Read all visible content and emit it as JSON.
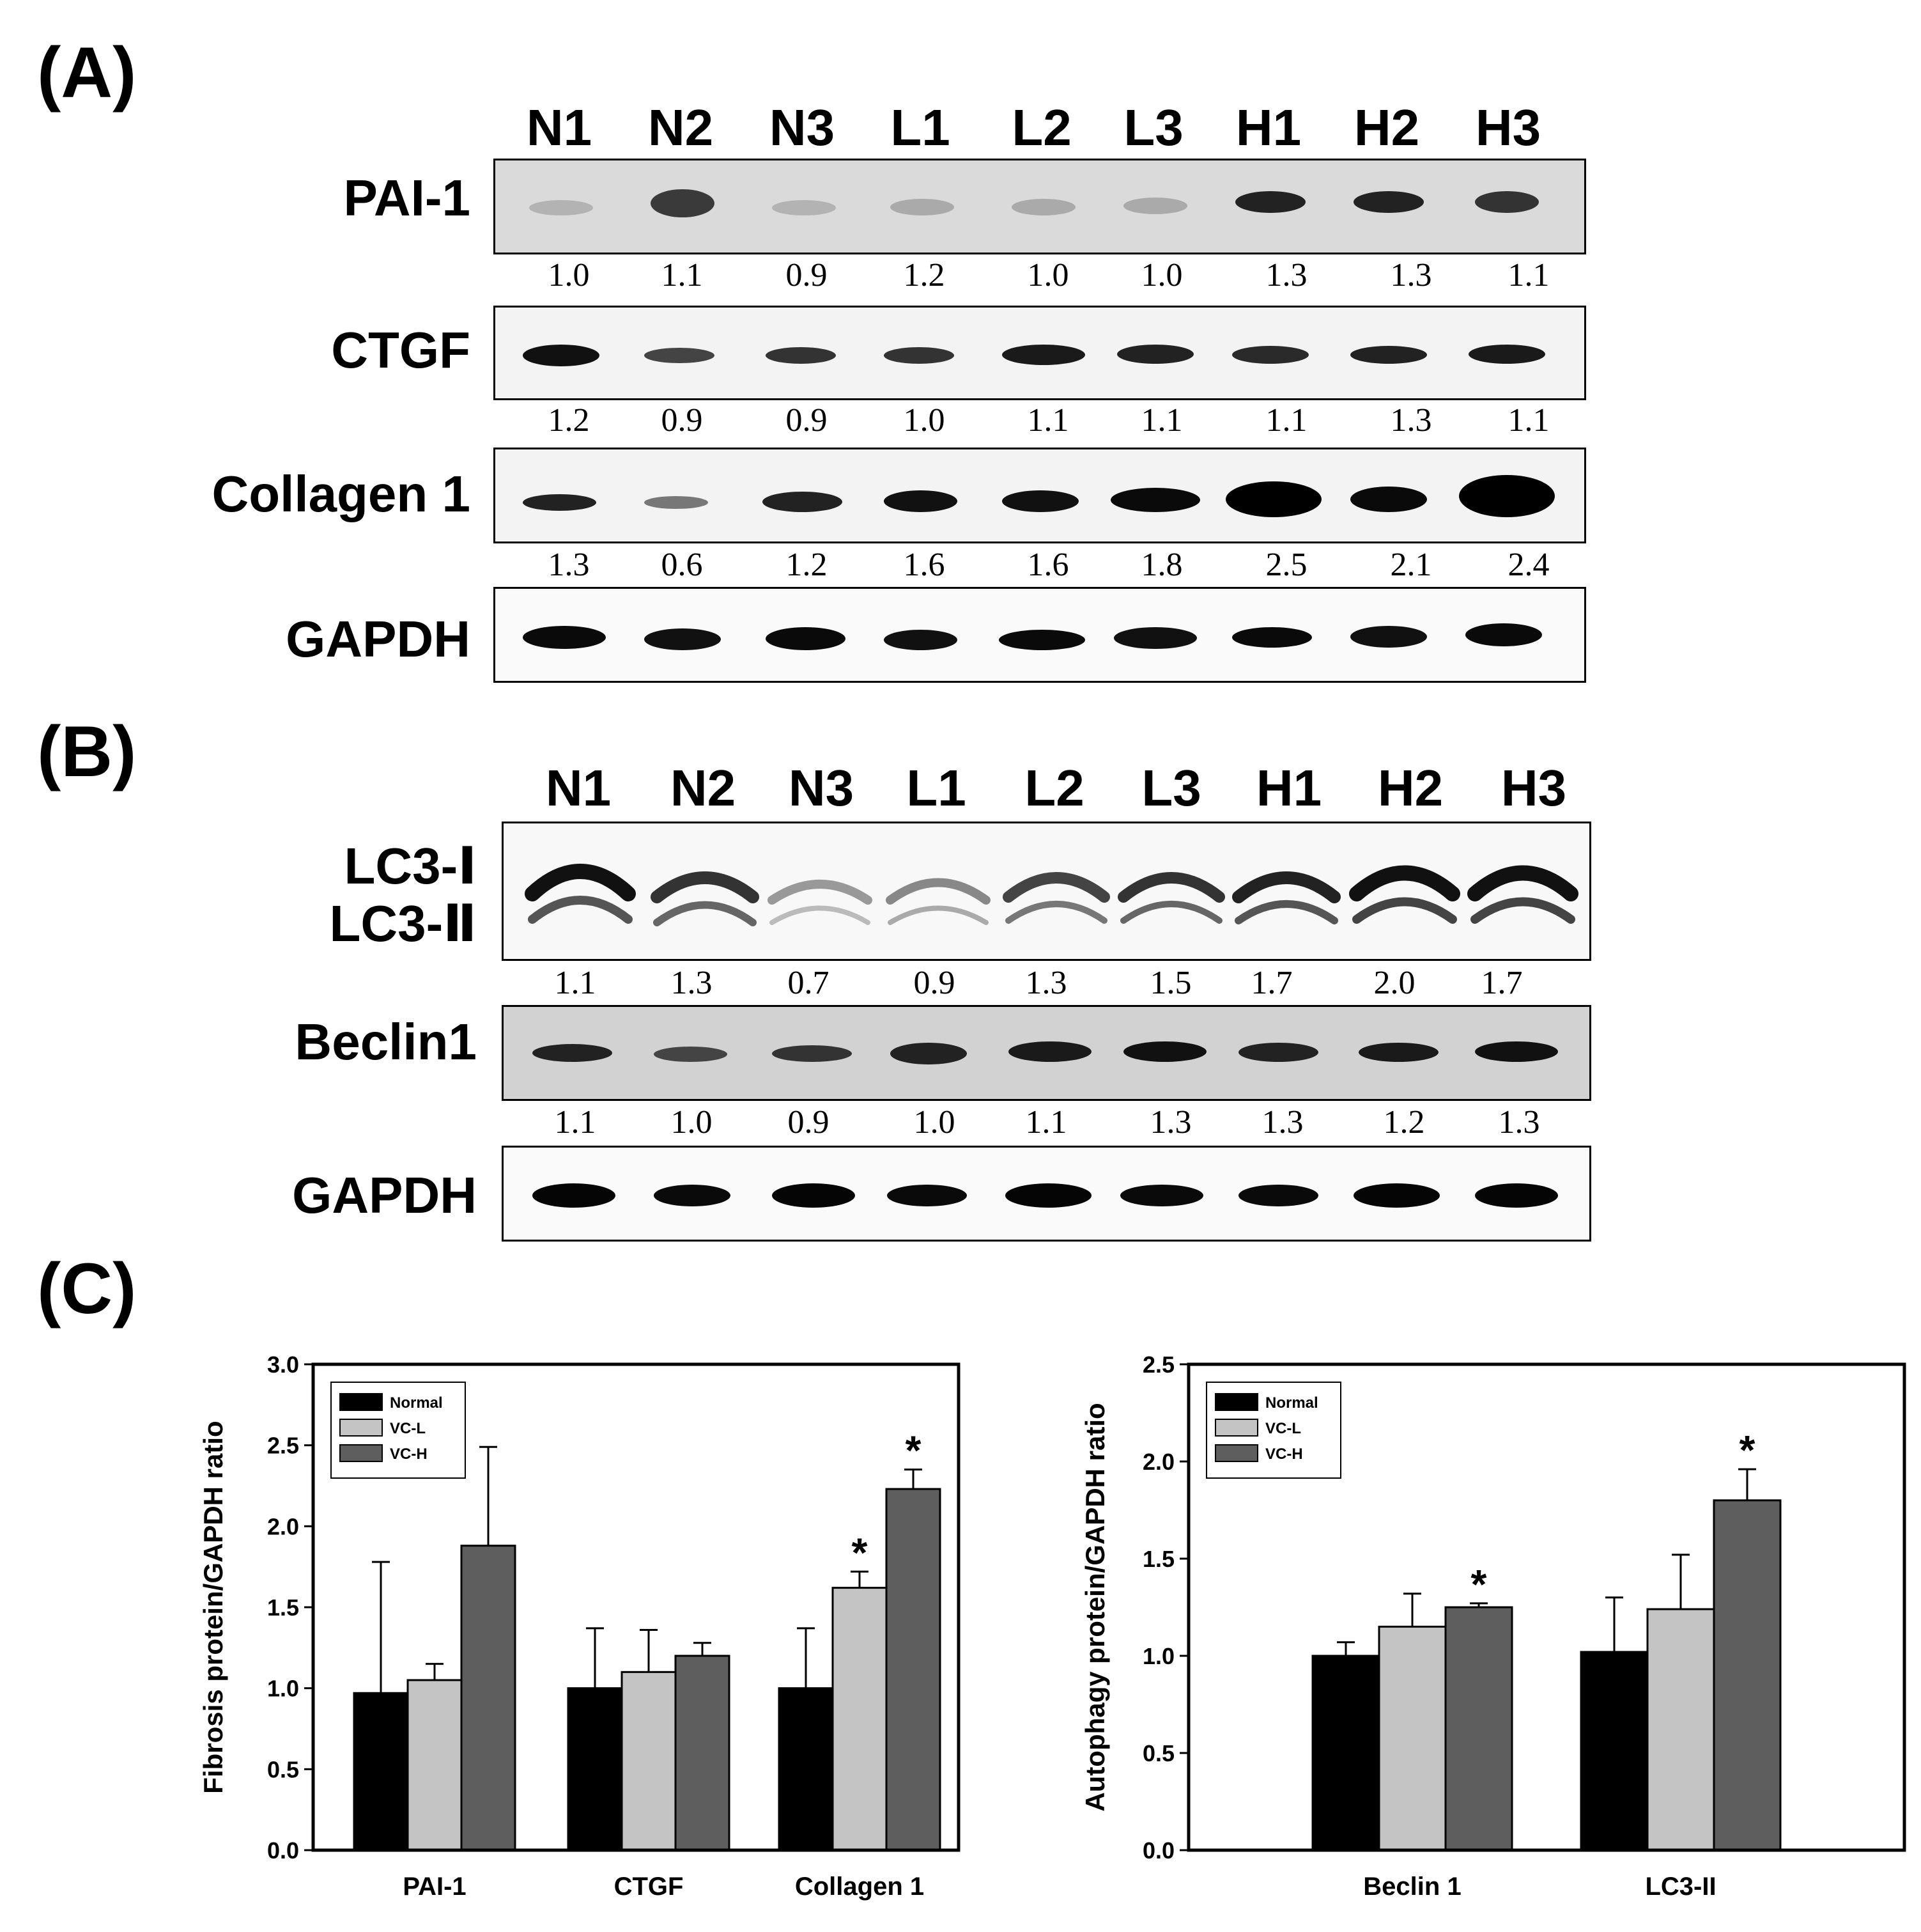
{
  "panels": {
    "a": "(A)",
    "b": "(B)",
    "c": "(C)"
  },
  "lanes": [
    "N1",
    "N2",
    "N3",
    "L1",
    "L2",
    "L3",
    "H1",
    "H2",
    "H3"
  ],
  "blot_a": {
    "pai1": {
      "label": "PAI-1",
      "ratios": [
        "1.0",
        "1.1",
        "0.9",
        "1.2",
        "1.0",
        "1.0",
        "1.3",
        "1.3",
        "1.1"
      ]
    },
    "ctgf": {
      "label": "CTGF",
      "ratios": [
        "1.2",
        "0.9",
        "0.9",
        "1.0",
        "1.1",
        "1.1",
        "1.1",
        "1.3",
        "1.1"
      ]
    },
    "col1": {
      "label": "Collagen 1",
      "ratios": [
        "1.3",
        "0.6",
        "1.2",
        "1.6",
        "1.6",
        "1.8",
        "2.5",
        "2.1",
        "2.4"
      ]
    },
    "gapdh": {
      "label": "GAPDH"
    }
  },
  "blot_b": {
    "lc3": {
      "label1": "LC3-Ⅰ",
      "label2": "LC3-Ⅱ",
      "ratios": [
        "1.1",
        "1.3",
        "0.7",
        "0.9",
        "1.3",
        "1.5",
        "1.7",
        "2.0",
        "1.7"
      ]
    },
    "beclin": {
      "label": "Beclin1",
      "ratios": [
        "1.1",
        "1.0",
        "0.9",
        "1.0",
        "1.1",
        "1.3",
        "1.3",
        "1.2",
        "1.3"
      ]
    },
    "gapdh": {
      "label": "GAPDH"
    }
  },
  "colors": {
    "normal": "#000000",
    "vcl": "#c4c4c4",
    "vch": "#5e5e5e"
  },
  "chart_data": [
    {
      "type": "bar",
      "ylabel": "Fibrosis protein/GAPDH ratio",
      "ylim": [
        0,
        3.0
      ],
      "yticks": [
        "0.0",
        "0.5",
        "1.0",
        "1.5",
        "2.0",
        "2.5",
        "3.0"
      ],
      "categories": [
        "PAI-1",
        "CTGF",
        "Collagen 1"
      ],
      "legend": [
        "Normal",
        "VC-L",
        "VC-H"
      ],
      "legend_position": "top-left",
      "series": [
        {
          "name": "Normal",
          "values": [
            0.97,
            1.0,
            1.0
          ],
          "errors": [
            0.81,
            0.37,
            0.37
          ],
          "sig": [
            false,
            false,
            false
          ]
        },
        {
          "name": "VC-L",
          "values": [
            1.05,
            1.1,
            1.62
          ],
          "errors": [
            0.1,
            0.26,
            0.1
          ],
          "sig": [
            false,
            false,
            true
          ]
        },
        {
          "name": "VC-H",
          "values": [
            1.88,
            1.2,
            2.23
          ],
          "errors": [
            0.61,
            0.08,
            0.12
          ],
          "sig": [
            false,
            false,
            true
          ]
        }
      ],
      "sig_mark": "*"
    },
    {
      "type": "bar",
      "ylabel": "Autophagy protein/GAPDH ratio",
      "ylim": [
        0,
        2.5
      ],
      "yticks": [
        "0.0",
        "0.5",
        "1.0",
        "1.5",
        "2.0",
        "2.5"
      ],
      "categories": [
        "Beclin 1",
        "LC3-II"
      ],
      "legend": [
        "Normal",
        "VC-L",
        "VC-H"
      ],
      "legend_position": "top-left",
      "series": [
        {
          "name": "Normal",
          "values": [
            1.0,
            1.02
          ],
          "errors": [
            0.07,
            0.28
          ],
          "sig": [
            false,
            false
          ]
        },
        {
          "name": "VC-L",
          "values": [
            1.15,
            1.24
          ],
          "errors": [
            0.17,
            0.28
          ],
          "sig": [
            false,
            false
          ]
        },
        {
          "name": "VC-H",
          "values": [
            1.25,
            1.8
          ],
          "errors": [
            0.02,
            0.16
          ],
          "sig": [
            true,
            true
          ]
        }
      ],
      "sig_mark": "*"
    }
  ]
}
